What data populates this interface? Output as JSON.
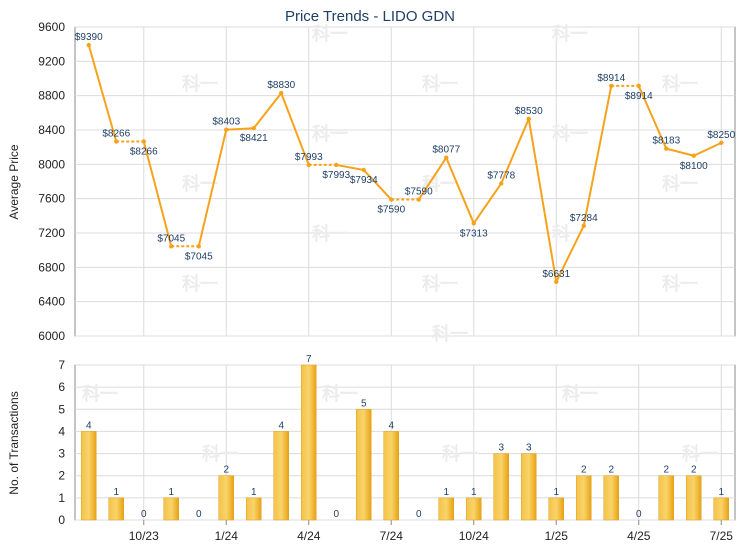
{
  "chart_data": [
    {
      "type": "line",
      "title": "Price Trends - LIDO GDN",
      "ylabel": "Average Price",
      "ylim": [
        6000,
        9600
      ],
      "yticks": [
        6000,
        6400,
        6800,
        7200,
        7600,
        8000,
        8400,
        8800,
        9200,
        9600
      ],
      "grid": true,
      "point_labels": [
        "$9390",
        "$8266",
        "$8266",
        "$7045",
        "$7045",
        "$8403",
        "$8421",
        "$8830",
        "$7993",
        "$7993",
        "$7934",
        "$7590",
        "$7590",
        "$8077",
        "$7313",
        "$7778",
        "$8530",
        "$6631",
        "$7284",
        "$8914",
        "$8914",
        "$8183",
        "$8100",
        "$8250"
      ],
      "values": [
        9390,
        8266,
        8266,
        7045,
        7045,
        8403,
        8421,
        8830,
        7993,
        7993,
        7934,
        7590,
        7590,
        8077,
        7313,
        7778,
        8530,
        6631,
        7284,
        8914,
        8914,
        8183,
        8100,
        8250
      ],
      "estimated": [
        false,
        false,
        true,
        false,
        true,
        false,
        false,
        false,
        false,
        true,
        false,
        false,
        true,
        false,
        false,
        false,
        false,
        false,
        false,
        false,
        true,
        false,
        false,
        false
      ],
      "color": "#f7a21b"
    },
    {
      "type": "bar",
      "ylabel": "No. of Transactions",
      "ylim": [
        0,
        7
      ],
      "yticks": [
        0,
        1,
        2,
        3,
        4,
        5,
        6,
        7
      ],
      "grid": true,
      "values": [
        4,
        1,
        0,
        1,
        0,
        2,
        1,
        4,
        7,
        0,
        5,
        4,
        0,
        1,
        1,
        3,
        3,
        1,
        2,
        2,
        0,
        2,
        2,
        1
      ],
      "xtick_labels": [
        "10/23",
        "1/24",
        "4/24",
        "7/24",
        "10/24",
        "1/25",
        "4/25",
        "7/25"
      ],
      "xtick_positions": [
        2,
        5,
        8,
        11,
        14,
        17,
        20,
        23
      ],
      "color": "#f2b323"
    }
  ],
  "watermark": "科一"
}
